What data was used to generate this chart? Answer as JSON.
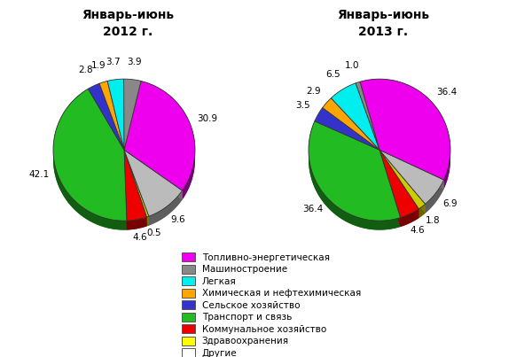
{
  "title2012": "Январь-июнь\n2012 г.",
  "title2013": "Январь-июнь\n2013 г.",
  "values2012": [
    30.9,
    3.9,
    3.7,
    1.9,
    2.8,
    42.1,
    4.6,
    0.5,
    9.6
  ],
  "values2013": [
    36.4,
    1.0,
    6.5,
    2.9,
    3.5,
    36.4,
    4.6,
    1.8,
    6.9
  ],
  "labels2012": [
    "30.9",
    "3.9",
    "3.7",
    "1.9",
    "2.8",
    "42.1",
    "4.6",
    "0.5",
    "9.6"
  ],
  "labels2013": [
    "36.4",
    "1.0",
    "6.5",
    "2.9",
    "3.5",
    "36.4",
    "4.6",
    "1.8",
    "6.9"
  ],
  "colors": [
    "#EE00EE",
    "#888888",
    "#00EEEE",
    "#FFA500",
    "#3333CC",
    "#22BB22",
    "#EE0000",
    "#CCCC00",
    "#BBBBBB"
  ],
  "legend_colors": [
    "#EE00EE",
    "#888888",
    "#00EEEE",
    "#FFA500",
    "#3333CC",
    "#22BB22",
    "#EE0000",
    "#FFFF00",
    "#FFFFFF"
  ],
  "legend_labels": [
    "Топливно-энергетическая",
    "Машиностроение",
    "Легкая",
    "Химическая и нефтехимическая",
    "Сельское хозяйство",
    "Транспорт и связь",
    "Коммунальное хозяйство",
    "Здравоохранения",
    "Другие"
  ],
  "startangle2012": -35,
  "startangle2013": -25,
  "label_r": 1.25,
  "depth": 0.13,
  "figsize": [
    6.0,
    4.03
  ],
  "dpi": 100
}
